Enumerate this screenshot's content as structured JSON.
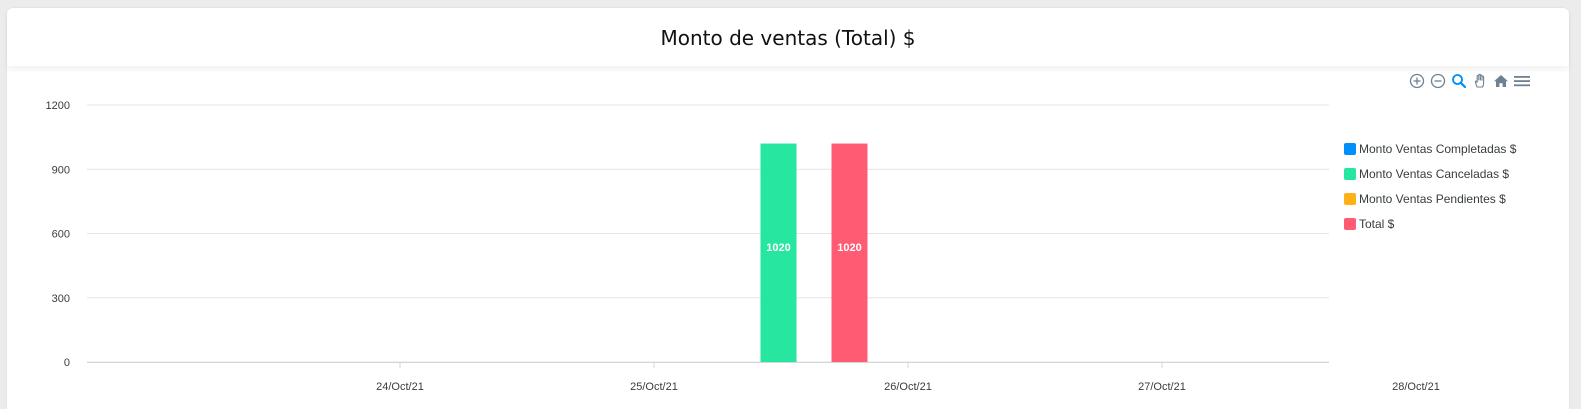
{
  "title": "Monto de ventas (Total) $",
  "toolbar": {
    "icons": [
      "zoom-in-icon",
      "zoom-out-icon",
      "zoom-selection-icon",
      "pan-icon",
      "home-icon",
      "menu-icon"
    ]
  },
  "colors": {
    "completadas": "#008ffb",
    "canceladas": "#26e6a0",
    "pendientes": "#feb019",
    "total": "#ff5b73",
    "grid": "#e4e4e4",
    "axis_text": "#373d3f",
    "toolbar_icon": "#6e8192",
    "toolbar_active": "#008ffb"
  },
  "chart_data": {
    "type": "bar",
    "title": "Monto de ventas (Total) $",
    "xlabel": "",
    "ylabel": "",
    "ylim": [
      0,
      1200
    ],
    "y_ticks": [
      "0",
      "300",
      "600",
      "900",
      "1200"
    ],
    "x_ticks": [
      "24/Oct/21",
      "25/Oct/21",
      "26/Oct/21",
      "27/Oct/21",
      "28/Oct/21"
    ],
    "grid": true,
    "legend_position": "right",
    "series": [
      {
        "name": "Monto Ventas Completadas $",
        "color": "#008ffb",
        "points": []
      },
      {
        "name": "Monto Ventas Canceladas $",
        "color": "#26e6a0",
        "points": [
          {
            "x": "25/Oct/21",
            "y": 1020
          }
        ]
      },
      {
        "name": "Monto Ventas Pendientes $",
        "color": "#feb019",
        "points": []
      },
      {
        "name": "Total $",
        "color": "#ff5b73",
        "points": [
          {
            "x": "25/Oct/21",
            "y": 1020
          }
        ]
      }
    ],
    "data_labels": [
      "1020",
      "1020"
    ]
  }
}
